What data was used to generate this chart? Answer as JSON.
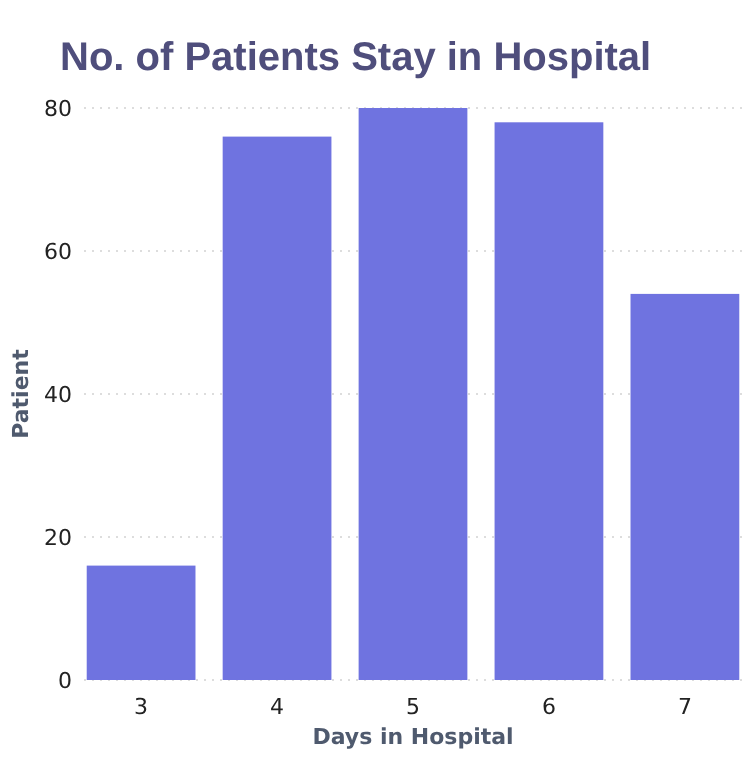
{
  "chart_data": {
    "type": "bar",
    "title": "No. of Patients Stay in Hospital",
    "xlabel": "Days in Hospital",
    "ylabel": "Patient",
    "categories": [
      "3",
      "4",
      "5",
      "6",
      "7"
    ],
    "values": [
      16,
      76,
      80,
      78,
      54
    ],
    "color": "#6f73e0",
    "ylim": [
      0,
      80
    ],
    "yticks": [
      0,
      20,
      40,
      60,
      80
    ],
    "grid": "y"
  }
}
